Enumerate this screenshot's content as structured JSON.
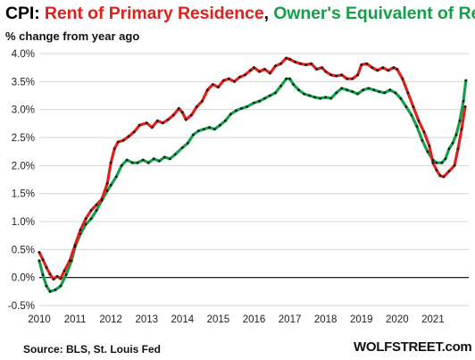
{
  "header": {
    "title_prefix": "CPI: ",
    "series_rent_label": "Rent of Primary Residence",
    "separator": ", ",
    "series_oer_label": "Owner's Equivalent of Rent",
    "subtitle": "% change from year ago"
  },
  "footer": {
    "source": "Source: BLS, St. Louis Fed",
    "brand": "WOLFSTREET.com"
  },
  "colors": {
    "title": "#000000",
    "rent": "#e0201b",
    "oer": "#14a04a",
    "markers": "#1a1a1a",
    "gridlines": "#d4d4d4",
    "zero_line": "#000000"
  },
  "chart_data": {
    "type": "line",
    "title": "CPI: Rent of Primary Residence, Owner's Equivalent of Rent",
    "ylabel": "% change from year ago",
    "xlabel": "",
    "ylim": [
      -0.5,
      4.0
    ],
    "xlim": [
      2010.0,
      2022.0
    ],
    "grid": "horizontal",
    "y_ticks": [
      "-0.5%",
      "0.0%",
      "0.5%",
      "1.0%",
      "1.5%",
      "2.0%",
      "2.5%",
      "3.0%",
      "3.5%",
      "4.0%"
    ],
    "x_ticks": [
      "2010",
      "2011",
      "2012",
      "2013",
      "2014",
      "2015",
      "2016",
      "2017",
      "2018",
      "2019",
      "2020",
      "2021"
    ],
    "series": [
      {
        "name": "Rent of Primary Residence",
        "color": "#e0201b",
        "points": [
          [
            2010.0,
            0.45
          ],
          [
            2010.1,
            0.32
          ],
          [
            2010.2,
            0.18
          ],
          [
            2010.3,
            0.06
          ],
          [
            2010.4,
            -0.03
          ],
          [
            2010.5,
            0.02
          ],
          [
            2010.6,
            -0.02
          ],
          [
            2010.7,
            0.12
          ],
          [
            2010.85,
            0.3
          ],
          [
            2011.0,
            0.58
          ],
          [
            2011.15,
            0.85
          ],
          [
            2011.3,
            1.05
          ],
          [
            2011.45,
            1.2
          ],
          [
            2011.6,
            1.3
          ],
          [
            2011.75,
            1.4
          ],
          [
            2011.9,
            1.68
          ],
          [
            2012.0,
            2.05
          ],
          [
            2012.1,
            2.3
          ],
          [
            2012.2,
            2.42
          ],
          [
            2012.35,
            2.45
          ],
          [
            2012.5,
            2.52
          ],
          [
            2012.65,
            2.6
          ],
          [
            2012.8,
            2.72
          ],
          [
            2013.0,
            2.76
          ],
          [
            2013.15,
            2.68
          ],
          [
            2013.3,
            2.8
          ],
          [
            2013.45,
            2.76
          ],
          [
            2013.6,
            2.82
          ],
          [
            2013.75,
            2.9
          ],
          [
            2013.9,
            3.02
          ],
          [
            2014.0,
            2.95
          ],
          [
            2014.1,
            2.82
          ],
          [
            2014.25,
            2.9
          ],
          [
            2014.4,
            3.05
          ],
          [
            2014.55,
            3.15
          ],
          [
            2014.7,
            3.35
          ],
          [
            2014.85,
            3.45
          ],
          [
            2015.0,
            3.4
          ],
          [
            2015.15,
            3.52
          ],
          [
            2015.3,
            3.55
          ],
          [
            2015.45,
            3.5
          ],
          [
            2015.6,
            3.58
          ],
          [
            2015.75,
            3.62
          ],
          [
            2015.9,
            3.7
          ],
          [
            2016.0,
            3.75
          ],
          [
            2016.15,
            3.68
          ],
          [
            2016.3,
            3.72
          ],
          [
            2016.45,
            3.65
          ],
          [
            2016.6,
            3.78
          ],
          [
            2016.75,
            3.82
          ],
          [
            2016.9,
            3.92
          ],
          [
            2017.0,
            3.9
          ],
          [
            2017.15,
            3.85
          ],
          [
            2017.3,
            3.82
          ],
          [
            2017.45,
            3.8
          ],
          [
            2017.6,
            3.82
          ],
          [
            2017.75,
            3.72
          ],
          [
            2017.9,
            3.75
          ],
          [
            2018.0,
            3.68
          ],
          [
            2018.15,
            3.62
          ],
          [
            2018.3,
            3.6
          ],
          [
            2018.45,
            3.62
          ],
          [
            2018.6,
            3.55
          ],
          [
            2018.75,
            3.55
          ],
          [
            2018.9,
            3.62
          ],
          [
            2019.0,
            3.8
          ],
          [
            2019.15,
            3.82
          ],
          [
            2019.3,
            3.75
          ],
          [
            2019.45,
            3.7
          ],
          [
            2019.6,
            3.75
          ],
          [
            2019.75,
            3.7
          ],
          [
            2019.9,
            3.75
          ],
          [
            2020.0,
            3.72
          ],
          [
            2020.15,
            3.55
          ],
          [
            2020.3,
            3.3
          ],
          [
            2020.45,
            3.05
          ],
          [
            2020.6,
            2.8
          ],
          [
            2020.75,
            2.6
          ],
          [
            2020.9,
            2.35
          ],
          [
            2021.0,
            2.05
          ],
          [
            2021.1,
            1.92
          ],
          [
            2021.2,
            1.82
          ],
          [
            2021.3,
            1.8
          ],
          [
            2021.45,
            1.9
          ],
          [
            2021.6,
            2.0
          ],
          [
            2021.7,
            2.3
          ],
          [
            2021.8,
            2.65
          ],
          [
            2021.9,
            3.05
          ]
        ]
      },
      {
        "name": "Owner's Equivalent of Rent",
        "color": "#14a04a",
        "points": [
          [
            2010.0,
            0.3
          ],
          [
            2010.1,
            0.05
          ],
          [
            2010.2,
            -0.15
          ],
          [
            2010.3,
            -0.25
          ],
          [
            2010.45,
            -0.22
          ],
          [
            2010.6,
            -0.15
          ],
          [
            2010.75,
            0.05
          ],
          [
            2010.9,
            0.3
          ],
          [
            2011.0,
            0.55
          ],
          [
            2011.15,
            0.78
          ],
          [
            2011.3,
            0.95
          ],
          [
            2011.45,
            1.05
          ],
          [
            2011.6,
            1.2
          ],
          [
            2011.75,
            1.38
          ],
          [
            2011.9,
            1.55
          ],
          [
            2012.0,
            1.65
          ],
          [
            2012.15,
            1.8
          ],
          [
            2012.3,
            2.0
          ],
          [
            2012.45,
            2.1
          ],
          [
            2012.6,
            2.05
          ],
          [
            2012.75,
            2.05
          ],
          [
            2012.9,
            2.1
          ],
          [
            2013.05,
            2.05
          ],
          [
            2013.2,
            2.12
          ],
          [
            2013.35,
            2.08
          ],
          [
            2013.5,
            2.15
          ],
          [
            2013.65,
            2.12
          ],
          [
            2013.8,
            2.2
          ],
          [
            2014.0,
            2.32
          ],
          [
            2014.15,
            2.4
          ],
          [
            2014.3,
            2.55
          ],
          [
            2014.45,
            2.62
          ],
          [
            2014.6,
            2.65
          ],
          [
            2014.75,
            2.68
          ],
          [
            2014.9,
            2.65
          ],
          [
            2015.05,
            2.72
          ],
          [
            2015.2,
            2.8
          ],
          [
            2015.35,
            2.92
          ],
          [
            2015.5,
            2.98
          ],
          [
            2015.65,
            3.02
          ],
          [
            2015.8,
            3.05
          ],
          [
            2016.0,
            3.12
          ],
          [
            2016.15,
            3.15
          ],
          [
            2016.3,
            3.2
          ],
          [
            2016.45,
            3.25
          ],
          [
            2016.6,
            3.3
          ],
          [
            2016.75,
            3.42
          ],
          [
            2016.9,
            3.55
          ],
          [
            2017.0,
            3.55
          ],
          [
            2017.1,
            3.45
          ],
          [
            2017.25,
            3.35
          ],
          [
            2017.4,
            3.28
          ],
          [
            2017.55,
            3.25
          ],
          [
            2017.7,
            3.22
          ],
          [
            2017.85,
            3.2
          ],
          [
            2018.0,
            3.22
          ],
          [
            2018.15,
            3.2
          ],
          [
            2018.3,
            3.3
          ],
          [
            2018.45,
            3.38
          ],
          [
            2018.6,
            3.35
          ],
          [
            2018.75,
            3.32
          ],
          [
            2018.9,
            3.28
          ],
          [
            2019.05,
            3.35
          ],
          [
            2019.2,
            3.38
          ],
          [
            2019.35,
            3.35
          ],
          [
            2019.5,
            3.32
          ],
          [
            2019.65,
            3.3
          ],
          [
            2019.8,
            3.35
          ],
          [
            2019.95,
            3.3
          ],
          [
            2020.1,
            3.2
          ],
          [
            2020.25,
            3.05
          ],
          [
            2020.4,
            2.9
          ],
          [
            2020.55,
            2.7
          ],
          [
            2020.7,
            2.45
          ],
          [
            2020.85,
            2.25
          ],
          [
            2021.0,
            2.1
          ],
          [
            2021.1,
            2.05
          ],
          [
            2021.25,
            2.05
          ],
          [
            2021.35,
            2.12
          ],
          [
            2021.45,
            2.3
          ],
          [
            2021.55,
            2.4
          ],
          [
            2021.65,
            2.55
          ],
          [
            2021.75,
            2.8
          ],
          [
            2021.85,
            3.15
          ],
          [
            2021.92,
            3.52
          ]
        ]
      }
    ]
  }
}
